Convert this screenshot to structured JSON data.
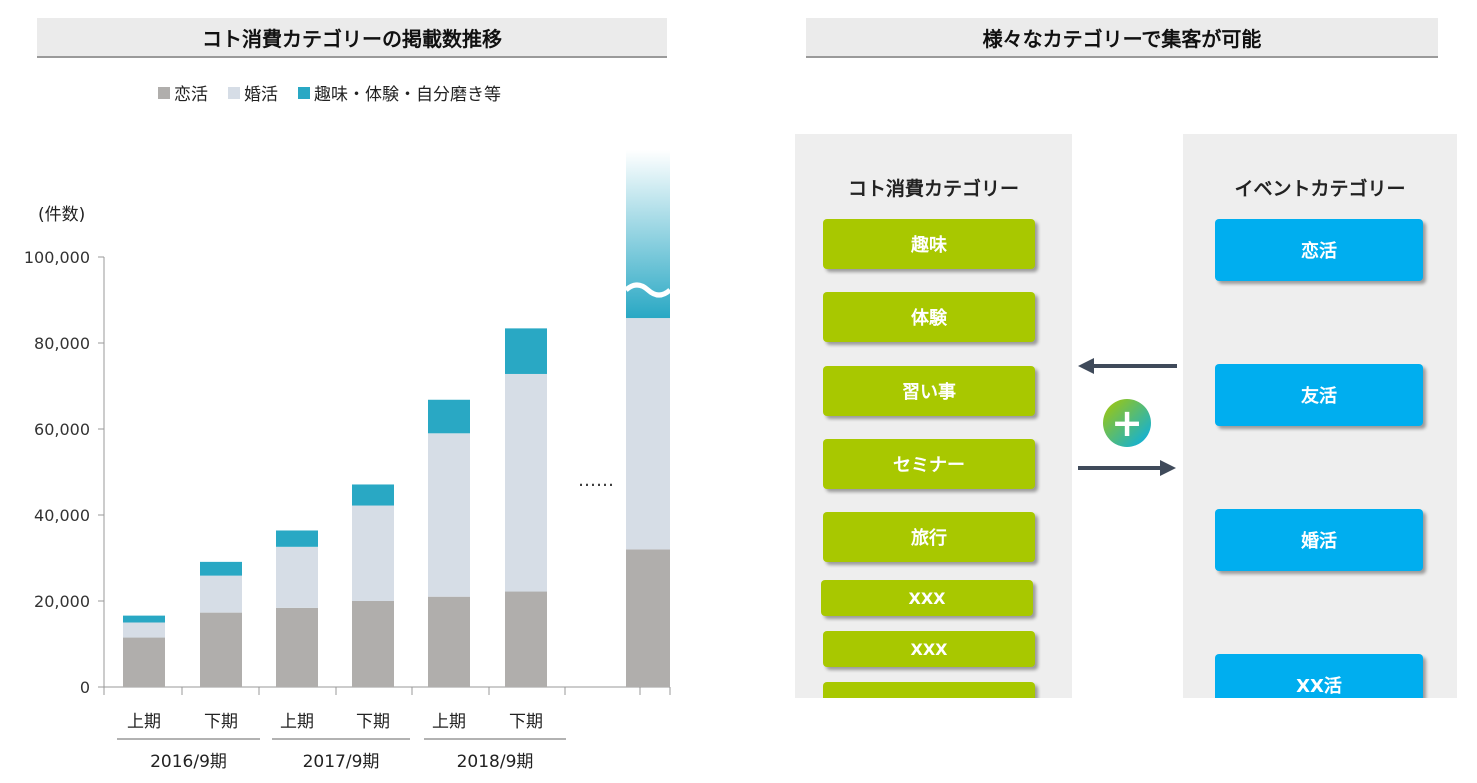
{
  "left": {
    "title": "コト消費カテゴリーの掲載数推移",
    "unit": "(件数)",
    "ellipsis": "……"
  },
  "right": {
    "title": "様々なカテゴリーで集客が可能",
    "left_heading": "コト消費カテゴリー",
    "right_heading": "イベントカテゴリー",
    "koto_items": [
      "趣味",
      "体験",
      "習い事",
      "セミナー",
      "旅行",
      "XXX",
      "XXX",
      ""
    ],
    "event_items": [
      "恋活",
      "友活",
      "婚活",
      "XX活"
    ],
    "plus_symbol": "+"
  },
  "colors": {
    "renkatsu": "#b0aeac",
    "konkatsu": "#d6dde6",
    "hobby": "#29a8c4",
    "green_button": "#a8c800",
    "blue_button": "#00aeef",
    "arrow": "#3f4a5a"
  },
  "chart_data": {
    "type": "bar",
    "stacked": true,
    "title": "コト消費カテゴリーの掲載数推移",
    "ylabel": "(件数)",
    "ylim": [
      0,
      100000
    ],
    "y_ticks": [
      "0",
      "20,000",
      "40,000",
      "60,000",
      "80,000",
      "100,000"
    ],
    "categories": [
      "上期",
      "下期",
      "上期",
      "下期",
      "上期",
      "下期",
      ""
    ],
    "groups": [
      {
        "label": "2016/9期",
        "span": [
          0,
          1
        ]
      },
      {
        "label": "2017/9期",
        "span": [
          2,
          3
        ]
      },
      {
        "label": "2018/9期",
        "span": [
          4,
          5
        ]
      }
    ],
    "series": [
      {
        "name": "恋活",
        "color": "#b0aeac",
        "values": [
          11500,
          17300,
          18400,
          20000,
          21000,
          22200,
          32000
        ]
      },
      {
        "name": "婚活",
        "color": "#d6dde6",
        "values": [
          3500,
          8600,
          14200,
          22200,
          38000,
          50600,
          53800
        ]
      },
      {
        "name": "趣味・体験・自分磨き等",
        "color": "#29a8c4",
        "values": [
          1600,
          3200,
          3800,
          4900,
          7800,
          10600,
          null
        ]
      }
    ],
    "legend": "top"
  }
}
